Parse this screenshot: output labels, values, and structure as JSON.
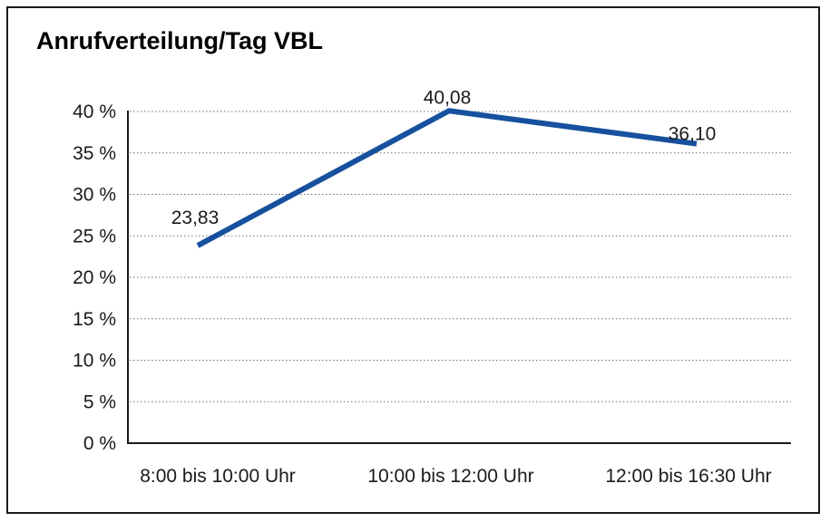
{
  "title": "Anrufverteilung/Tag VBL",
  "chart_data": {
    "type": "line",
    "title": "Anrufverteilung/Tag VBL",
    "categories": [
      "8:00 bis 10:00 Uhr",
      "10:00 bis 12:00 Uhr",
      "12:00 bis 16:30 Uhr"
    ],
    "values": [
      23.83,
      40.08,
      36.1
    ],
    "point_labels": [
      "23,83",
      "40,08",
      "36,10"
    ],
    "series_name": "Anrufverteilung",
    "unit": "%",
    "ylim": [
      0,
      40
    ],
    "ytick_step": 5,
    "yticks": [
      {
        "value": 0,
        "label": "0 %"
      },
      {
        "value": 5,
        "label": "5 %"
      },
      {
        "value": 10,
        "label": "10 %"
      },
      {
        "value": 15,
        "label": "15 %"
      },
      {
        "value": 20,
        "label": "20 %"
      },
      {
        "value": 25,
        "label": "25 %"
      },
      {
        "value": 30,
        "label": "30 %"
      },
      {
        "value": 35,
        "label": "35 %"
      },
      {
        "value": 40,
        "label": "40 %"
      }
    ],
    "grid": "dotted-horizontal",
    "legend": "none",
    "colors": {
      "line": "#17519E",
      "axis": "#1a1a1a",
      "gridline": "#707070",
      "text": "#1a1a1a",
      "background": "#ffffff",
      "border": "#1a1a1a"
    }
  }
}
